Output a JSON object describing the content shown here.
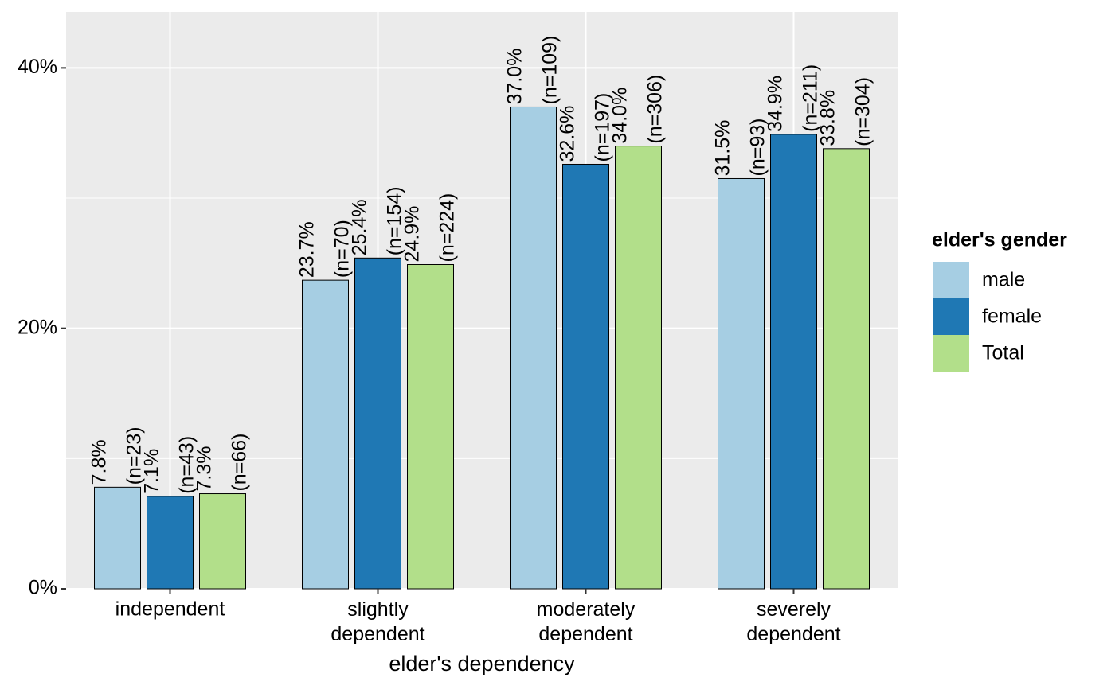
{
  "chart_data": {
    "type": "bar",
    "x_label": "elder's dependency",
    "legend_title": "elder's gender",
    "legend_position": "right",
    "grid": true,
    "categories": [
      "independent",
      "slightly\ndependent",
      "moderately\ndependent",
      "severely\ndependent"
    ],
    "series": [
      {
        "name": "male",
        "color": "#a6cee3",
        "values": [
          7.8,
          23.7,
          37.0,
          31.5
        ],
        "value_labels": [
          "7.8%\n(n=23)",
          "23.7%\n(n=70)",
          "37.0%\n(n=109)",
          "31.5%\n(n=93)"
        ]
      },
      {
        "name": "female",
        "color": "#1f78b4",
        "values": [
          7.1,
          25.4,
          32.6,
          34.9
        ],
        "value_labels": [
          "7.1%\n(n=43)",
          "25.4%\n(n=154)",
          "32.6%\n(n=197)",
          "34.9%\n(n=211)"
        ]
      },
      {
        "name": "Total",
        "color": "#b2df8a",
        "values": [
          7.3,
          24.9,
          34.0,
          33.8
        ],
        "value_labels": [
          "7.3%\n(n=66)",
          "24.9%\n(n=224)",
          "34.0%\n(n=306)",
          "33.8%\n(n=304)"
        ]
      }
    ],
    "ylim": [
      0,
      44.3
    ],
    "yticks": [
      {
        "value": 0,
        "label": "0%"
      },
      {
        "value": 20,
        "label": "20%"
      },
      {
        "value": 40,
        "label": "40%"
      }
    ],
    "y_minor_ticks": [
      10,
      30
    ]
  }
}
